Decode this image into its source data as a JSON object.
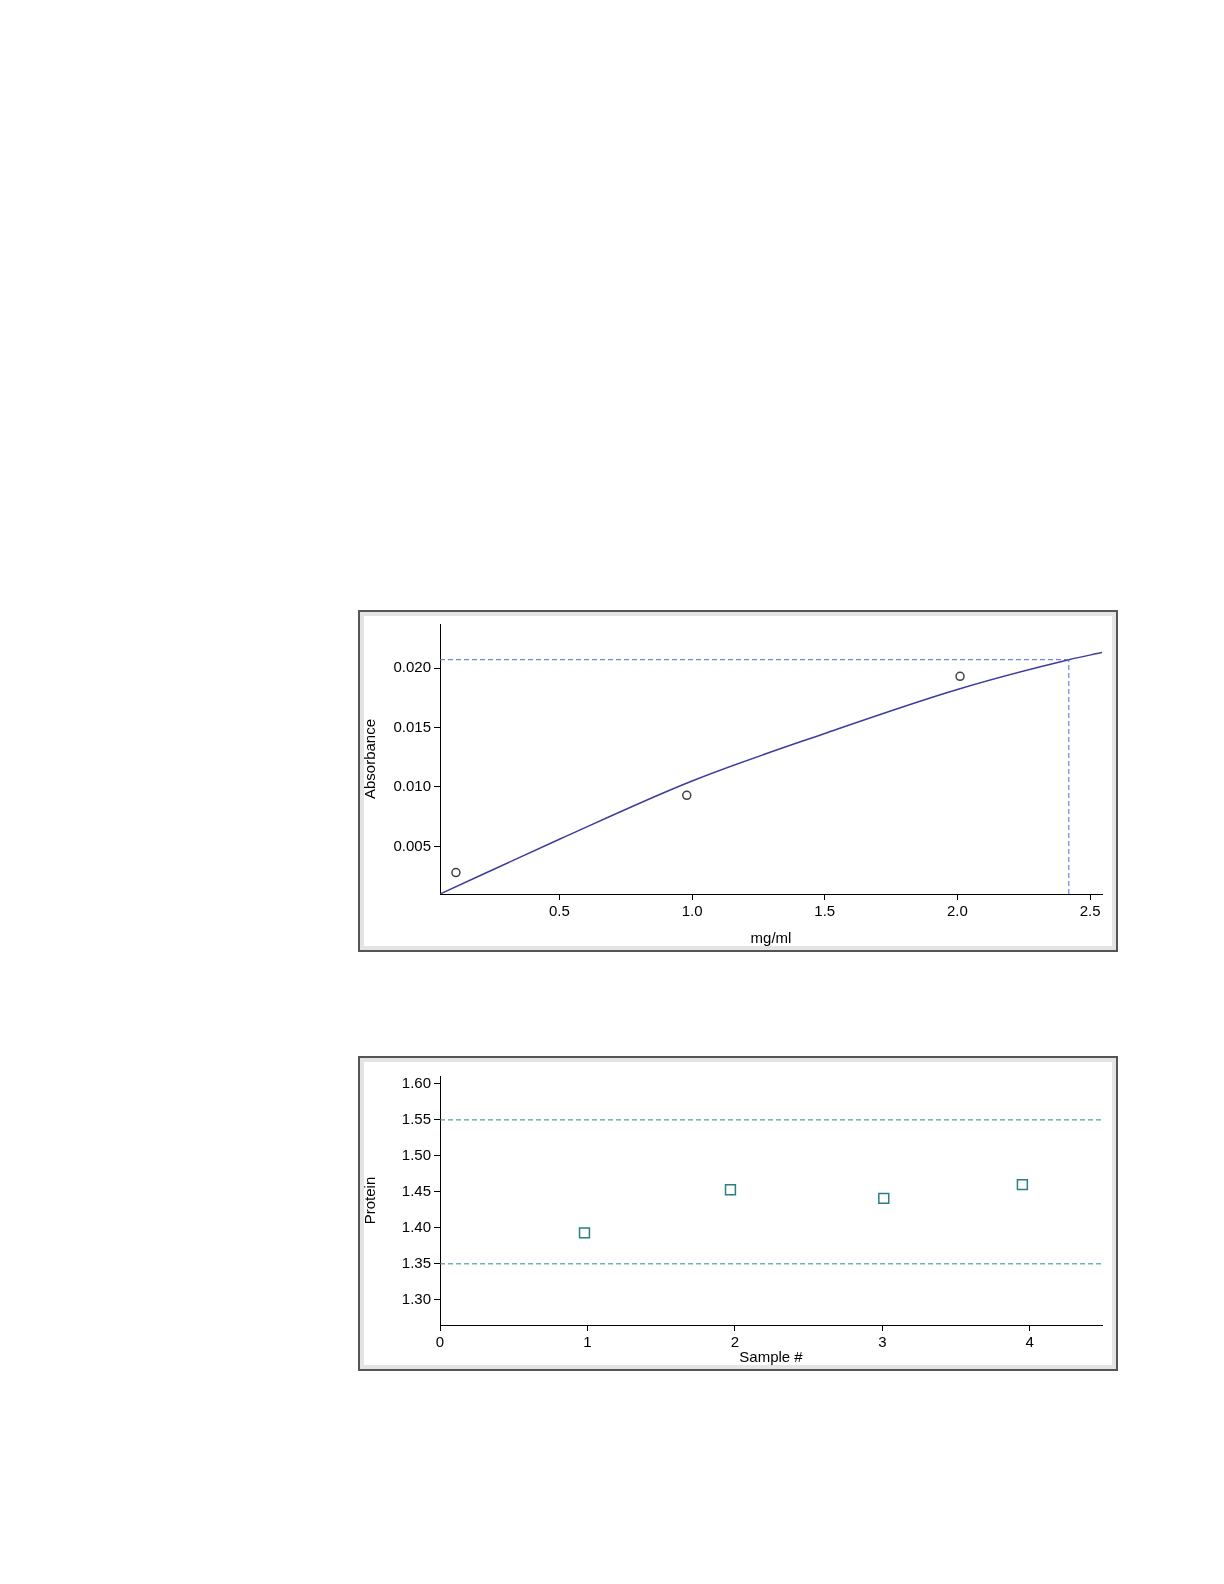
{
  "chart_data": [
    {
      "type": "scatter",
      "xlabel": "mg/ml",
      "ylabel": "Absorbance",
      "xlim": [
        0.05,
        2.545
      ],
      "xticks": [
        0.5,
        {
          "value": 1,
          "label": "1.0"
        },
        1.5,
        {
          "value": 2,
          "label": "2.0"
        },
        2.5
      ],
      "ylim": [
        0.001,
        0.0237
      ],
      "yticks": [
        {
          "value": 0.005,
          "label": "0.005"
        },
        {
          "value": 0.01,
          "label": "0.010"
        },
        {
          "value": 0.015,
          "label": "0.015"
        },
        {
          "value": 0.02,
          "label": "0.020"
        }
      ],
      "grid": false,
      "legend": false,
      "series": [
        {
          "type": "scatter",
          "color": "#404040",
          "marker": "circle",
          "x": [
            0.11,
            0.98,
            2.01
          ],
          "values": [
            0.0028,
            0.0093,
            0.0193
          ]
        },
        {
          "type": "line",
          "color": "#3c3c9c",
          "marker": "none",
          "line_style": "solid",
          "x": [
            0.05,
            0.5,
            1.0,
            1.5,
            2.0,
            2.42,
            2.545
          ],
          "values": [
            0.001,
            0.0056,
            0.0105,
            0.0145,
            0.0182,
            0.0207,
            0.0213
          ]
        }
      ],
      "ref_lines": [
        {
          "axis": "y",
          "value": 0.0207,
          "color": "#4a6fd0",
          "line_style": "dashed"
        },
        {
          "axis": "x",
          "value": 2.42,
          "color": "#4a6fd0",
          "line_style": "dashed"
        }
      ]
    },
    {
      "type": "scatter",
      "xlabel": "Sample #",
      "ylabel": "Protein",
      "xlim": [
        0,
        4.49
      ],
      "xticks": [
        0,
        1,
        2,
        3,
        4
      ],
      "ylim": [
        1.265,
        1.611
      ],
      "yticks": [
        {
          "value": 1.3,
          "label": "1.30"
        },
        1.35,
        {
          "value": 1.4,
          "label": "1.40"
        },
        1.45,
        {
          "value": 1.5,
          "label": "1.50"
        },
        1.55,
        {
          "value": 1.6,
          "label": "1.60"
        }
      ],
      "grid": false,
      "legend": false,
      "series": [
        {
          "type": "scatter",
          "color": "#2a8080",
          "marker": "square",
          "x": [
            0.98,
            1.97,
            3.01,
            3.95
          ],
          "values": [
            1.393,
            1.453,
            1.441,
            1.46
          ]
        }
      ],
      "ref_lines": [
        {
          "axis": "y",
          "value": 1.55,
          "color": "#2a8a8a",
          "line_style": "dashed"
        },
        {
          "axis": "y",
          "value": 1.35,
          "color": "#2a8a8a",
          "line_style": "dashed"
        }
      ]
    }
  ]
}
